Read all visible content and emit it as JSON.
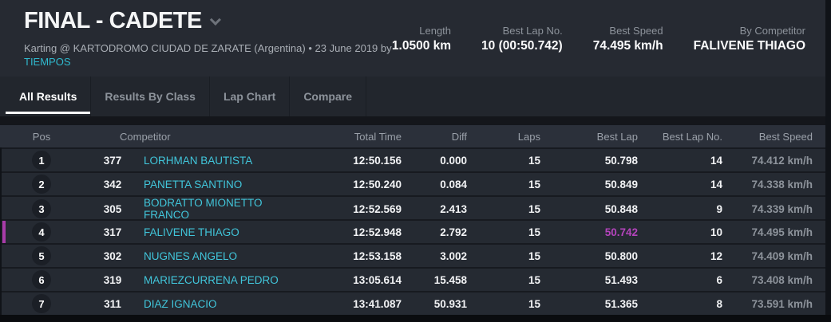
{
  "header": {
    "title": "FINAL - CADETE",
    "subtitle": "Karting @ KARTODROMO CIUDAD DE ZARATE (Argentina) • 23 June 2019 by",
    "subtitle_link": "TIEMPOS",
    "stats": [
      {
        "label": "Length",
        "value": "1.0500 km"
      },
      {
        "label": "Best Lap No.",
        "value": "10 (00:50.742)"
      },
      {
        "label": "Best Speed",
        "value": "74.495 km/h"
      },
      {
        "label": "By Competitor",
        "value": "FALIVENE THIAGO"
      }
    ]
  },
  "tabs": [
    {
      "label": "All Results",
      "active": true
    },
    {
      "label": "Results By Class",
      "active": false
    },
    {
      "label": "Lap Chart",
      "active": false
    },
    {
      "label": "Compare",
      "active": false
    }
  ],
  "table": {
    "columns": [
      "Pos",
      "Competitor",
      "Total Time",
      "Diff",
      "Laps",
      "Best Lap",
      "Best Lap No.",
      "Best Speed"
    ],
    "rows": [
      {
        "pos": "1",
        "number": "377",
        "competitor": "LORHMAN BAUTISTA",
        "total_time": "12:50.156",
        "diff": "0.000",
        "laps": "15",
        "best_lap": "50.798",
        "best_lap_no": "14",
        "best_speed": "74.412 km/h"
      },
      {
        "pos": "2",
        "number": "342",
        "competitor": "PANETTA SANTINO",
        "total_time": "12:50.240",
        "diff": "0.084",
        "laps": "15",
        "best_lap": "50.849",
        "best_lap_no": "14",
        "best_speed": "74.338 km/h"
      },
      {
        "pos": "3",
        "number": "305",
        "competitor": "BODRATTO MIONETTO FRANCO",
        "total_time": "12:52.569",
        "diff": "2.413",
        "laps": "15",
        "best_lap": "50.848",
        "best_lap_no": "9",
        "best_speed": "74.339 km/h"
      },
      {
        "pos": "4",
        "number": "317",
        "competitor": "FALIVENE THIAGO",
        "total_time": "12:52.948",
        "diff": "2.792",
        "laps": "15",
        "best_lap": "50.742",
        "best_lap_no": "10",
        "best_speed": "74.495 km/h"
      },
      {
        "pos": "5",
        "number": "302",
        "competitor": "NUGNES ANGELO",
        "total_time": "12:53.158",
        "diff": "3.002",
        "laps": "15",
        "best_lap": "50.800",
        "best_lap_no": "12",
        "best_speed": "74.409 km/h"
      },
      {
        "pos": "6",
        "number": "319",
        "competitor": "MARIEZCURRENA PEDRO",
        "total_time": "13:05.614",
        "diff": "15.458",
        "laps": "15",
        "best_lap": "51.493",
        "best_lap_no": "6",
        "best_speed": "73.408 km/h"
      },
      {
        "pos": "7",
        "number": "311",
        "competitor": "DIAZ IGNACIO",
        "total_time": "13:41.087",
        "diff": "50.931",
        "laps": "15",
        "best_lap": "51.365",
        "best_lap_no": "8",
        "best_speed": "73.591 km/h"
      }
    ],
    "overall_best_lap_row_index": 3
  },
  "colors": {
    "accent_cyan": "#41c6db",
    "link_cyan": "#2fb9ce",
    "highlight_magenta": "#a83ba8",
    "best_lap_purple": "#b544bd",
    "header_bg": "#262a32",
    "row_bg": "#252a32",
    "thead_bg": "#2b303a"
  }
}
